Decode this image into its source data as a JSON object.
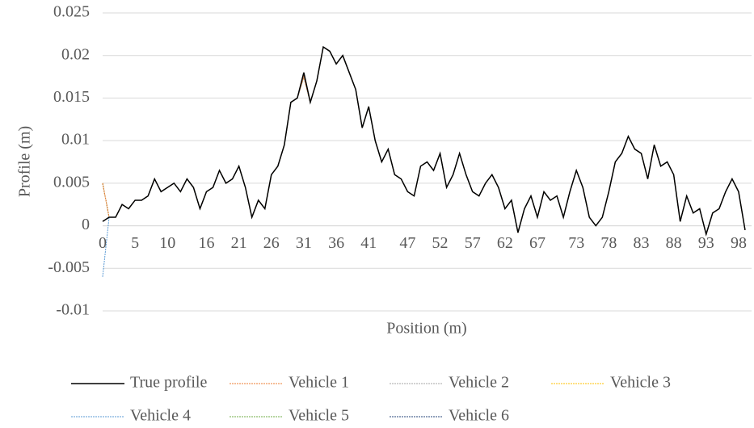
{
  "chart_data": {
    "type": "line",
    "x_label": "Position (m)",
    "y_label": "Profile (m)",
    "x": [
      0,
      1,
      2,
      3,
      4,
      5,
      6,
      7,
      8,
      9,
      10,
      11,
      12,
      13,
      14,
      15,
      16,
      17,
      18,
      19,
      20,
      21,
      22,
      23,
      24,
      25,
      26,
      27,
      28,
      29,
      30,
      31,
      32,
      33,
      34,
      35,
      36,
      37,
      38,
      39,
      40,
      41,
      42,
      43,
      44,
      45,
      46,
      47,
      48,
      49,
      50,
      51,
      52,
      53,
      54,
      55,
      56,
      57,
      58,
      59,
      60,
      61,
      62,
      63,
      64,
      65,
      66,
      67,
      68,
      69,
      70,
      71,
      72,
      73,
      74,
      75,
      76,
      77,
      78,
      79,
      80,
      81,
      82,
      83,
      84,
      85,
      86,
      87,
      88,
      89,
      90,
      91,
      92,
      93,
      94,
      95,
      96,
      97,
      98,
      99
    ],
    "series": [
      {
        "name": "True profile",
        "color": "#000000",
        "dashed": false,
        "values": [
          0.0005,
          0.001,
          0.001,
          0.0025,
          0.002,
          0.003,
          0.003,
          0.0035,
          0.0055,
          0.004,
          0.0045,
          0.005,
          0.004,
          0.0055,
          0.0045,
          0.002,
          0.004,
          0.0045,
          0.0065,
          0.005,
          0.0055,
          0.007,
          0.0045,
          0.001,
          0.003,
          0.002,
          0.006,
          0.007,
          0.0095,
          0.0145,
          0.015,
          0.018,
          0.0145,
          0.017,
          0.021,
          0.0205,
          0.019,
          0.02,
          0.018,
          0.016,
          0.0115,
          0.014,
          0.01,
          0.0075,
          0.009,
          0.006,
          0.0055,
          0.004,
          0.0035,
          0.007,
          0.0075,
          0.0065,
          0.0085,
          0.0045,
          0.006,
          0.0085,
          0.006,
          0.004,
          0.0035,
          0.005,
          0.006,
          0.0045,
          0.002,
          0.003,
          -0.0008,
          0.002,
          0.0035,
          0.001,
          0.004,
          0.003,
          0.0035,
          0.001,
          0.004,
          0.0065,
          0.0045,
          0.001,
          0,
          0.001,
          0.004,
          0.0075,
          0.0085,
          0.0105,
          0.009,
          0.0085,
          0.0055,
          0.0095,
          0.007,
          0.0075,
          0.006,
          0.0005,
          0.0035,
          0.0015,
          0.002,
          -0.001,
          0.0015,
          0.002,
          0.004,
          0.0055,
          0.004,
          -0.0005
        ]
      },
      {
        "name": "Vehicle 1",
        "color": "#ed7d31",
        "dashed": true,
        "values": [
          0.005,
          0.001,
          0.001,
          0.0025,
          0.002,
          0.003,
          0.003,
          0.0035,
          0.0055,
          0.004,
          0.0045,
          0.005,
          0.004,
          0.0055,
          0.0045,
          0.002,
          0.004,
          0.0045,
          0.0065,
          0.005,
          0.0055,
          0.007,
          0.0045,
          0.001,
          0.003,
          0.002,
          0.006,
          0.007,
          0.0095,
          0.0145,
          0.015,
          0.0175,
          0.0145,
          0.017,
          0.021,
          0.0205,
          0.019,
          0.02,
          0.018,
          0.016,
          0.0115,
          0.014,
          0.01,
          0.0075,
          0.009,
          0.006,
          0.0055,
          0.004,
          0.0035,
          0.007,
          0.0075,
          0.0065,
          0.0085,
          0.0045,
          0.006,
          0.0085,
          0.006,
          0.004,
          0.0035,
          0.005,
          0.006,
          0.0045,
          0.002,
          0.003,
          -0.0008,
          0.002,
          0.0035,
          0.001,
          0.004,
          0.003,
          0.0035,
          0.001,
          0.004,
          0.0065,
          0.0045,
          0.001,
          0,
          0.001,
          0.004,
          0.0075,
          0.0085,
          0.0105,
          0.009,
          0.0085,
          0.0055,
          0.0095,
          0.007,
          0.0075,
          0.006,
          0.0005,
          0.0035,
          0.0015,
          0.002,
          -0.001,
          0.0015,
          0.002,
          0.004,
          0.0055,
          0.004,
          -0.0005
        ]
      },
      {
        "name": "Vehicle 2",
        "color": "#a5a5a5",
        "dashed": true,
        "values": [
          0.005,
          0.001,
          0.001,
          0.0025,
          0.002,
          0.003,
          0.003,
          0.0035,
          0.0055,
          0.004,
          0.0045,
          0.005,
          0.004,
          0.0055,
          0.0045,
          0.002,
          0.004,
          0.0045,
          0.0065,
          0.005,
          0.0055,
          0.007,
          0.0045,
          0.001,
          0.003,
          0.002,
          0.006,
          0.007,
          0.0095,
          0.0145,
          0.015,
          0.0175,
          0.0145,
          0.017,
          0.021,
          0.0205,
          0.019,
          0.02,
          0.018,
          0.016,
          0.0115,
          0.014,
          0.01,
          0.0075,
          0.009,
          0.006,
          0.0055,
          0.004,
          0.0035,
          0.007,
          0.0075,
          0.0065,
          0.0085,
          0.0045,
          0.006,
          0.0085,
          0.006,
          0.004,
          0.0035,
          0.005,
          0.006,
          0.0045,
          0.002,
          0.003,
          -0.0008,
          0.002,
          0.0035,
          0.001,
          0.004,
          0.003,
          0.0035,
          0.001,
          0.004,
          0.0065,
          0.0045,
          0.001,
          0,
          0.001,
          0.004,
          0.0075,
          0.0085,
          0.0105,
          0.009,
          0.0085,
          0.0055,
          0.0095,
          0.007,
          0.0075,
          0.006,
          0.0005,
          0.0035,
          0.0015,
          0.002,
          -0.001,
          0.0015,
          0.002,
          0.004,
          0.0055,
          0.004,
          -0.0005
        ]
      },
      {
        "name": "Vehicle 3",
        "color": "#ffc000",
        "dashed": true,
        "values": [
          0.005,
          0.001,
          0.001,
          0.0025,
          0.002,
          0.003,
          0.003,
          0.0035,
          0.0055,
          0.004,
          0.0045,
          0.005,
          0.004,
          0.0055,
          0.0045,
          0.002,
          0.004,
          0.0045,
          0.0065,
          0.005,
          0.0055,
          0.007,
          0.0045,
          0.001,
          0.003,
          0.002,
          0.006,
          0.007,
          0.0095,
          0.0145,
          0.015,
          0.0175,
          0.0145,
          0.017,
          0.021,
          0.0205,
          0.019,
          0.02,
          0.018,
          0.016,
          0.0115,
          0.014,
          0.01,
          0.0075,
          0.009,
          0.006,
          0.0055,
          0.004,
          0.0035,
          0.007,
          0.0075,
          0.0065,
          0.0085,
          0.0045,
          0.006,
          0.0085,
          0.006,
          0.004,
          0.0035,
          0.005,
          0.006,
          0.0045,
          0.002,
          0.003,
          -0.0008,
          0.002,
          0.0035,
          0.001,
          0.004,
          0.003,
          0.0035,
          0.001,
          0.004,
          0.0065,
          0.0045,
          0.001,
          0,
          0.001,
          0.004,
          0.0075,
          0.0085,
          0.0105,
          0.009,
          0.0085,
          0.0055,
          0.0095,
          0.007,
          0.0075,
          0.006,
          0.0005,
          0.0035,
          0.0015,
          0.002,
          -0.001,
          0.0015,
          0.002,
          0.004,
          0.0055,
          0.004,
          -0.0005
        ]
      },
      {
        "name": "Vehicle 4",
        "color": "#5b9bd5",
        "dashed": true,
        "values": [
          -0.006,
          0.001,
          0.001,
          0.0025,
          0.002,
          0.003,
          0.003,
          0.0035,
          0.0055,
          0.004,
          0.0045,
          0.005,
          0.004,
          0.0055,
          0.0045,
          0.002,
          0.004,
          0.0045,
          0.0065,
          0.005,
          0.0055,
          0.007,
          0.0045,
          0.001,
          0.003,
          0.002,
          0.006,
          0.007,
          0.0095,
          0.0145,
          0.015,
          0.0175,
          0.0145,
          0.017,
          0.021,
          0.0205,
          0.019,
          0.02,
          0.018,
          0.016,
          0.0115,
          0.014,
          0.01,
          0.0075,
          0.009,
          0.006,
          0.0055,
          0.004,
          0.0035,
          0.007,
          0.0075,
          0.0065,
          0.0085,
          0.0045,
          0.006,
          0.0085,
          0.006,
          0.004,
          0.0035,
          0.005,
          0.006,
          0.0045,
          0.002,
          0.003,
          -0.0008,
          0.002,
          0.0035,
          0.001,
          0.004,
          0.003,
          0.0035,
          0.001,
          0.004,
          0.0065,
          0.0045,
          0.001,
          0,
          0.001,
          0.004,
          0.0075,
          0.0085,
          0.0105,
          0.009,
          0.0085,
          0.0055,
          0.0095,
          0.007,
          0.0075,
          0.006,
          0.0005,
          0.0035,
          0.0015,
          0.002,
          -0.001,
          0.0015,
          0.002,
          0.004,
          0.0055,
          0.004,
          -0.0005
        ]
      },
      {
        "name": "Vehicle 5",
        "color": "#70ad47",
        "dashed": true,
        "values": [
          0.005,
          0.001,
          0.001,
          0.0025,
          0.002,
          0.003,
          0.003,
          0.0035,
          0.0055,
          0.004,
          0.0045,
          0.005,
          0.004,
          0.0055,
          0.0045,
          0.002,
          0.004,
          0.0045,
          0.0065,
          0.005,
          0.0055,
          0.007,
          0.0045,
          0.001,
          0.003,
          0.002,
          0.006,
          0.007,
          0.0095,
          0.0145,
          0.015,
          0.0175,
          0.0145,
          0.017,
          0.021,
          0.0205,
          0.019,
          0.02,
          0.018,
          0.016,
          0.0115,
          0.014,
          0.01,
          0.0075,
          0.009,
          0.006,
          0.0055,
          0.004,
          0.0035,
          0.007,
          0.0075,
          0.0065,
          0.0085,
          0.0045,
          0.006,
          0.0085,
          0.006,
          0.004,
          0.0035,
          0.005,
          0.006,
          0.0045,
          0.002,
          0.003,
          -0.0008,
          0.002,
          0.0035,
          0.001,
          0.004,
          0.003,
          0.0035,
          0.001,
          0.004,
          0.0065,
          0.0045,
          0.001,
          0,
          0.001,
          0.004,
          0.0075,
          0.0085,
          0.0105,
          0.009,
          0.0085,
          0.0055,
          0.0095,
          0.007,
          0.0075,
          0.006,
          0.0005,
          0.0035,
          0.0015,
          0.002,
          -0.001,
          0.0015,
          0.002,
          0.004,
          0.0055,
          0.004,
          -0.0005
        ]
      },
      {
        "name": "Vehicle 6",
        "color": "#264478",
        "dashed": true,
        "values": [
          0.005,
          0.001,
          0.001,
          0.0025,
          0.002,
          0.003,
          0.003,
          0.0035,
          0.0055,
          0.004,
          0.0045,
          0.005,
          0.004,
          0.0055,
          0.0045,
          0.002,
          0.004,
          0.0045,
          0.0065,
          0.005,
          0.0055,
          0.007,
          0.0045,
          0.001,
          0.003,
          0.002,
          0.006,
          0.007,
          0.0095,
          0.0145,
          0.015,
          0.0175,
          0.0145,
          0.017,
          0.021,
          0.0205,
          0.019,
          0.02,
          0.018,
          0.016,
          0.0115,
          0.014,
          0.01,
          0.0075,
          0.009,
          0.006,
          0.0055,
          0.004,
          0.0035,
          0.007,
          0.0075,
          0.0065,
          0.0085,
          0.0045,
          0.006,
          0.0085,
          0.006,
          0.004,
          0.0035,
          0.005,
          0.006,
          0.0045,
          0.002,
          0.003,
          -0.0008,
          0.002,
          0.0035,
          0.001,
          0.004,
          0.003,
          0.0035,
          0.001,
          0.004,
          0.0065,
          0.0045,
          0.001,
          0,
          0.001,
          0.004,
          0.0075,
          0.0085,
          0.0105,
          0.009,
          0.0085,
          0.0055,
          0.0095,
          0.007,
          0.0075,
          0.006,
          0.0005,
          0.0035,
          0.0015,
          0.002,
          -0.001,
          0.0015,
          0.002,
          0.004,
          0.0055,
          0.004,
          -0.0005
        ]
      }
    ],
    "xlim": [
      0,
      100
    ],
    "xticks": [
      0,
      5,
      10,
      16,
      21,
      26,
      31,
      36,
      41,
      47,
      52,
      57,
      62,
      67,
      73,
      78,
      83,
      88,
      93,
      98
    ],
    "ylim": [
      -0.01,
      0.025
    ],
    "yticks": [
      0.025,
      0.02,
      0.015,
      0.01,
      0.005,
      0,
      -0.005,
      -0.01
    ],
    "grid": true,
    "legend": "bottom"
  }
}
